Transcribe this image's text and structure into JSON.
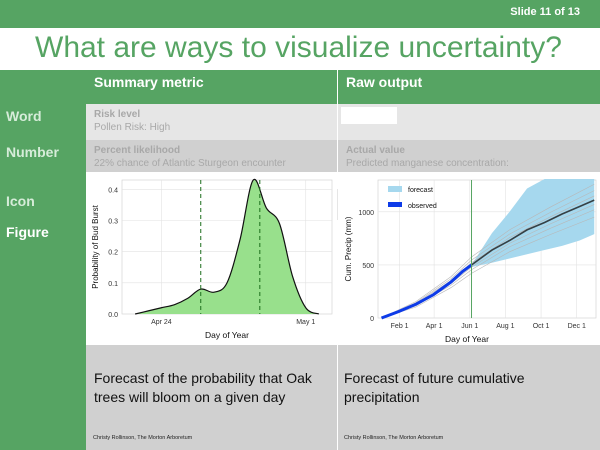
{
  "slide_number": "Slide 11 of 13",
  "title": "What are ways to visualize uncertainty?",
  "columns": {
    "summary": "Summary metric",
    "raw": "Raw output"
  },
  "rows": {
    "word": {
      "label": "Word",
      "summary_title": "Risk level",
      "summary_text": "Pollen Risk: High"
    },
    "number": {
      "label": "Number",
      "summary_title": "Percent likelihood",
      "summary_text": "22% chance of Atlantic Sturgeon encounter",
      "raw_title": "Actual value",
      "raw_text": "Predicted manganese concentration:"
    },
    "icon": {
      "label": "Icon"
    },
    "figure": {
      "label": "Figure",
      "summary_caption": "Forecast of the probability that Oak trees will bloom on a given day",
      "raw_caption": "Forecast of future cumulative precipitation",
      "credit": "Christy Rollinson, The Morton Arboretum"
    }
  },
  "chart_data": [
    {
      "type": "area",
      "title": "",
      "xlabel": "Day of Year",
      "ylabel": "Probability of Bud Burst",
      "xticks": [
        "Apr 24",
        "May 1"
      ],
      "yticks": [
        "0.0",
        "0.1",
        "0.2",
        "0.3",
        "0.4"
      ],
      "ylim": [
        0,
        0.43
      ],
      "x": [
        108,
        109,
        110,
        111,
        112,
        113,
        114,
        115,
        116,
        117,
        118,
        119,
        120,
        121,
        122
      ],
      "y": [
        0.0,
        0.01,
        0.02,
        0.03,
        0.05,
        0.08,
        0.07,
        0.1,
        0.24,
        0.43,
        0.34,
        0.29,
        0.12,
        0.02,
        0.0
      ],
      "vlines": [
        113,
        117.5
      ],
      "fill_color": "#98e08c",
      "grid": true
    },
    {
      "type": "line",
      "title": "",
      "xlabel": "Day of Year",
      "ylabel": "Cum. Precip (mm)",
      "xticks": [
        "Feb 1",
        "Apr 1",
        "Jun 1",
        "Aug 1",
        "Oct 1",
        "Dec 1"
      ],
      "yticks": [
        "0",
        "500",
        "1000"
      ],
      "ylim": [
        0,
        1300
      ],
      "legend": [
        "forecast",
        "observed"
      ],
      "legend_position": "top-left",
      "observed": {
        "x": [
          1,
          30,
          60,
          90,
          120,
          140,
          155
        ],
        "y": [
          0,
          60,
          130,
          220,
          340,
          440,
          500
        ]
      },
      "forecast_median": {
        "x": [
          155,
          190,
          220,
          250,
          280,
          310,
          340,
          365
        ],
        "y": [
          500,
          640,
          730,
          830,
          900,
          980,
          1050,
          1110
        ]
      },
      "forecast_upper": {
        "x": [
          155,
          190,
          220,
          250,
          280,
          300,
          340,
          365
        ],
        "y": [
          500,
          800,
          1000,
          1220,
          1310,
          1310,
          1310,
          1310
        ]
      },
      "forecast_lower": {
        "x": [
          155,
          190,
          220,
          250,
          280,
          310,
          340,
          365
        ],
        "y": [
          480,
          520,
          560,
          600,
          640,
          680,
          730,
          790
        ]
      },
      "vline": 155,
      "colors": {
        "forecast": "#a6d8ee",
        "observed": "#0d3be8",
        "median": "#1a1a1a",
        "vline": "#56a463"
      }
    }
  ]
}
